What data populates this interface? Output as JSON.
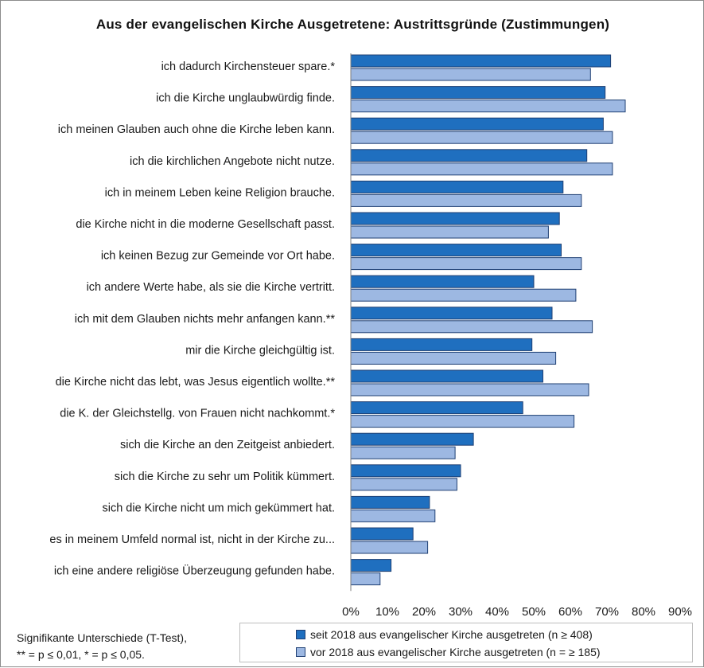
{
  "chart_data": {
    "type": "bar",
    "orientation": "horizontal",
    "title": "Aus der evangelischen Kirche Ausgetretene: Austrittsgründe  (Zustimmungen)",
    "categories": [
      "ich dadurch Kirchensteuer spare.*",
      "ich die Kirche unglaubwürdig finde.",
      "ich meinen Glauben auch ohne die Kirche leben kann.",
      "ich die kirchlichen Angebote nicht nutze.",
      "ich in meinem Leben keine Religion brauche.",
      "die Kirche nicht in die moderne Gesellschaft passt.",
      "ich keinen Bezug zur Gemeinde vor Ort habe.",
      "ich andere Werte habe, als sie die Kirche vertritt.",
      "ich mit dem Glauben nichts mehr anfangen kann.**",
      "mir die Kirche gleichgültig ist.",
      "die Kirche nicht das lebt, was Jesus eigentlich wollte.**",
      "die K. der Gleichstellg. von Frauen nicht nachkommt.*",
      "sich die Kirche an den Zeitgeist anbiedert.",
      "sich die Kirche zu sehr um Politik kümmert.",
      "sich die Kirche nicht um mich gekümmert hat.",
      "es in meinem Umfeld normal ist, nicht in der Kirche zu...",
      "ich eine andere religiöse Überzeugung gefunden habe."
    ],
    "series": [
      {
        "name": "seit 2018  aus evangelischer Kirche ausgetreten (n ≥ 408)",
        "color": "#1f6fbf",
        "values": [
          71,
          69.5,
          69,
          64.5,
          58,
          57,
          57.5,
          50,
          55,
          49.5,
          52.5,
          47,
          33.5,
          30,
          21.5,
          17,
          11
        ]
      },
      {
        "name": "vor 2018  aus evangelischer Kirche ausgetreten (n = ≥ 185)",
        "color": "#9db8e2",
        "values": [
          65.5,
          75,
          71.5,
          71.5,
          63,
          54,
          63,
          61.5,
          66,
          56,
          65,
          61,
          28.5,
          29,
          23,
          21,
          8
        ]
      }
    ],
    "xlim": [
      0,
      90
    ],
    "xticks": [
      "0%",
      "10%",
      "20%",
      "30%",
      "40%",
      "50%",
      "60%",
      "70%",
      "80%",
      "90%"
    ],
    "grid": false,
    "legend_position": "bottom"
  },
  "footnote": {
    "line1": "Signifikante Unterschiede (T-Test),",
    "line2": "** = p ≤ 0,01,  * = p ≤ 0,05."
  }
}
